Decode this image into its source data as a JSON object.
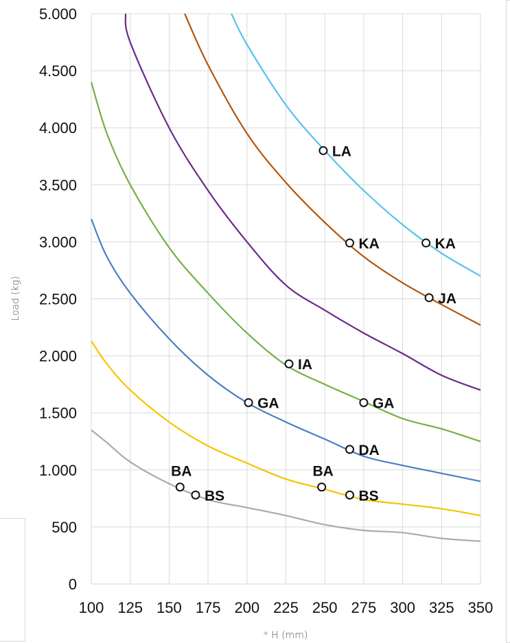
{
  "chart_data": {
    "type": "line",
    "xlabel": "* H (mm)",
    "ylabel": "Load (kg)",
    "xlim": [
      100,
      350
    ],
    "ylim": [
      0,
      5000
    ],
    "x_ticks": [
      100,
      125,
      150,
      175,
      200,
      225,
      250,
      275,
      300,
      325,
      350
    ],
    "y_ticks": [
      0,
      500,
      1000,
      1500,
      2000,
      2500,
      3000,
      3500,
      4000,
      4500,
      5000
    ],
    "y_tick_labels": [
      "0",
      "500",
      "1.000",
      "1.500",
      "2.000",
      "2.500",
      "3.000",
      "3.500",
      "4.000",
      "4.500",
      "5.000"
    ],
    "grid": true,
    "series": [
      {
        "color": "#aaaaaa",
        "x": [
          100,
          110,
          125,
          150,
          175,
          200,
          225,
          250,
          275,
          300,
          325,
          350
        ],
        "y": [
          1350,
          1240,
          1070,
          880,
          740,
          670,
          600,
          520,
          470,
          450,
          400,
          375
        ]
      },
      {
        "color": "#f5c400",
        "x": [
          100,
          110,
          125,
          150,
          175,
          200,
          225,
          250,
          275,
          300,
          325,
          350
        ],
        "y": [
          2130,
          1930,
          1700,
          1420,
          1210,
          1060,
          920,
          830,
          740,
          700,
          660,
          600
        ]
      },
      {
        "color": "#4a7fc1",
        "x": [
          100,
          110,
          125,
          150,
          175,
          200,
          225,
          250,
          275,
          300,
          325,
          350
        ],
        "y": [
          3200,
          2870,
          2550,
          2150,
          1830,
          1590,
          1420,
          1270,
          1120,
          1040,
          970,
          900
        ]
      },
      {
        "color": "#74b045",
        "x": [
          100,
          110,
          125,
          150,
          175,
          200,
          225,
          250,
          275,
          300,
          325,
          350
        ],
        "y": [
          4400,
          3950,
          3500,
          2950,
          2550,
          2200,
          1920,
          1750,
          1600,
          1450,
          1360,
          1250
        ]
      },
      {
        "color": "#6a2a8a",
        "x": [
          122,
          125,
          150,
          175,
          200,
          225,
          250,
          275,
          300,
          325,
          350
        ],
        "y": [
          5000,
          4750,
          4000,
          3450,
          3000,
          2620,
          2400,
          2200,
          2020,
          1830,
          1700
        ]
      },
      {
        "color": "#b4540c",
        "x": [
          160,
          175,
          200,
          225,
          250,
          275,
          300,
          325,
          350
        ],
        "y": [
          5000,
          4550,
          3950,
          3520,
          3170,
          2870,
          2640,
          2450,
          2270
        ]
      },
      {
        "color": "#56c2ec",
        "x": [
          190,
          200,
          225,
          250,
          275,
          300,
          325,
          350
        ],
        "y": [
          5000,
          4730,
          4200,
          3800,
          3450,
          3150,
          2900,
          2700
        ]
      }
    ],
    "points": [
      {
        "label": "BA",
        "x": 157,
        "y": 850,
        "label_pos": "above"
      },
      {
        "label": "BS",
        "x": 167,
        "y": 780,
        "label_pos": "right"
      },
      {
        "label": "GA",
        "x": 201,
        "y": 1590,
        "label_pos": "right"
      },
      {
        "label": "IA",
        "x": 227,
        "y": 1930,
        "label_pos": "right"
      },
      {
        "label": "LA",
        "x": 249,
        "y": 3800,
        "label_pos": "right"
      },
      {
        "label": "BA",
        "x": 248,
        "y": 850,
        "label_pos": "above"
      },
      {
        "label": "BS",
        "x": 266,
        "y": 780,
        "label_pos": "right"
      },
      {
        "label": "DA",
        "x": 266,
        "y": 1180,
        "label_pos": "right"
      },
      {
        "label": "KA",
        "x": 266,
        "y": 2990,
        "label_pos": "right"
      },
      {
        "label": "GA",
        "x": 275,
        "y": 1590,
        "label_pos": "right"
      },
      {
        "label": "KA",
        "x": 315,
        "y": 2990,
        "label_pos": "right"
      },
      {
        "label": "JA",
        "x": 317,
        "y": 2510,
        "label_pos": "right"
      }
    ]
  }
}
